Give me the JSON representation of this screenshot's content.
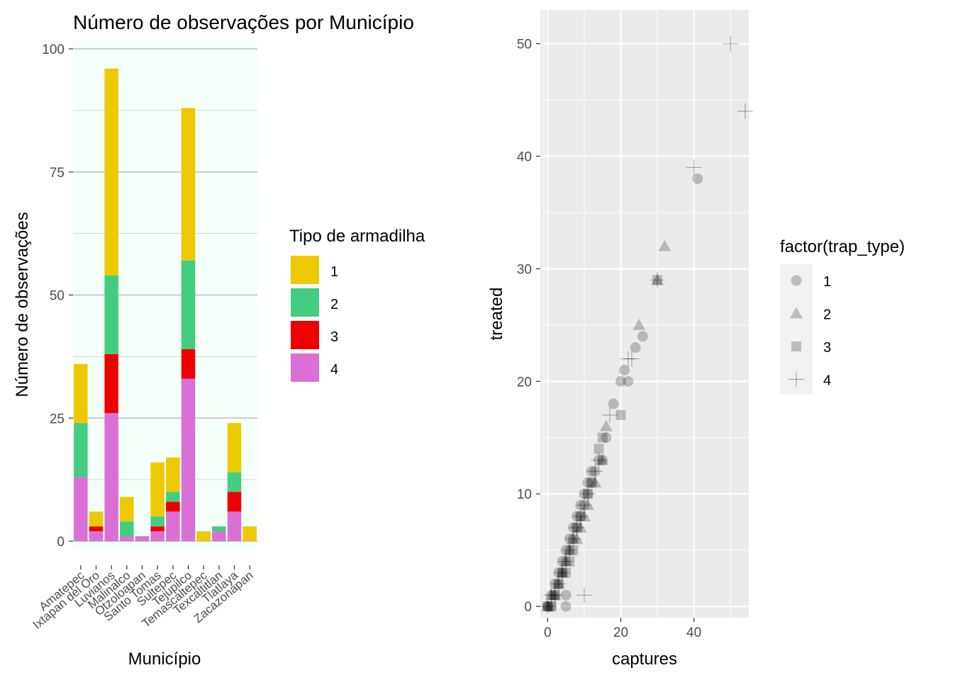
{
  "chart_data": [
    {
      "type": "bar",
      "title": "Número de observações por Município",
      "xlabel": "Município",
      "ylabel": "Número de observações",
      "ylim": [
        0,
        100
      ],
      "yticks": [
        0,
        25,
        50,
        75,
        100
      ],
      "grid": true,
      "stacked": true,
      "legend": {
        "title": "Tipo de armadilha",
        "position": "right"
      },
      "categories": [
        "Amatepec",
        "Ixtapan del Oro",
        "Luvianos",
        "Malinalco",
        "Otzoloapan",
        "Santo Tomas",
        "Sultepec",
        "Tejupilco",
        "Temascaltepec",
        "Texcaltitlan",
        "Tlatlaya",
        "Zacazonapan"
      ],
      "series": [
        {
          "name": "1",
          "color": "#EEC900",
          "values": [
            12,
            3,
            42,
            5,
            0,
            11,
            7,
            31,
            2,
            0,
            10,
            3
          ]
        },
        {
          "name": "2",
          "color": "#43CD80",
          "values": [
            11,
            0,
            16,
            3,
            0,
            2,
            2,
            18,
            0,
            1,
            4,
            0
          ]
        },
        {
          "name": "3",
          "color": "#EE0000",
          "values": [
            0,
            1,
            12,
            0,
            0,
            1,
            2,
            6,
            0,
            0,
            4,
            0
          ]
        },
        {
          "name": "4",
          "color": "#DA70D6",
          "values": [
            13,
            2,
            26,
            1,
            1,
            2,
            6,
            33,
            0,
            2,
            6,
            0
          ]
        }
      ]
    },
    {
      "type": "scatter",
      "xlabel": "captures",
      "ylabel": "treated",
      "xlim": [
        -2,
        55
      ],
      "ylim": [
        -1,
        53
      ],
      "xticks": [
        0,
        20,
        40
      ],
      "yticks": [
        0,
        10,
        20,
        30,
        40,
        50
      ],
      "grid": true,
      "legend": {
        "title": "factor(trap_type)",
        "position": "right"
      },
      "series": [
        {
          "name": "1",
          "shape": "circle",
          "points": [
            [
              0,
              0
            ],
            [
              0,
              0
            ],
            [
              1,
              0
            ],
            [
              1,
              1
            ],
            [
              2,
              1
            ],
            [
              2,
              2
            ],
            [
              3,
              2
            ],
            [
              3,
              3
            ],
            [
              4,
              3
            ],
            [
              4,
              4
            ],
            [
              5,
              4
            ],
            [
              5,
              5
            ],
            [
              6,
              5
            ],
            [
              6,
              6
            ],
            [
              7,
              6
            ],
            [
              7,
              7
            ],
            [
              8,
              7
            ],
            [
              8,
              8
            ],
            [
              9,
              8
            ],
            [
              9,
              9
            ],
            [
              10,
              9
            ],
            [
              10,
              10
            ],
            [
              11,
              10
            ],
            [
              11,
              11
            ],
            [
              12,
              11
            ],
            [
              12,
              12
            ],
            [
              13,
              12
            ],
            [
              14,
              13
            ],
            [
              15,
              13
            ],
            [
              16,
              15
            ],
            [
              18,
              18
            ],
            [
              20,
              20
            ],
            [
              21,
              21
            ],
            [
              22,
              20
            ],
            [
              24,
              23
            ],
            [
              26,
              24
            ],
            [
              41,
              38
            ],
            [
              5,
              0
            ],
            [
              5,
              1
            ]
          ]
        },
        {
          "name": "2",
          "shape": "triangle",
          "points": [
            [
              0,
              0
            ],
            [
              1,
              1
            ],
            [
              2,
              1
            ],
            [
              3,
              2
            ],
            [
              4,
              3
            ],
            [
              5,
              4
            ],
            [
              6,
              5
            ],
            [
              7,
              6
            ],
            [
              8,
              6
            ],
            [
              9,
              7
            ],
            [
              10,
              8
            ],
            [
              11,
              9
            ],
            [
              13,
              11
            ],
            [
              15,
              13
            ],
            [
              16,
              16
            ],
            [
              25,
              25
            ],
            [
              30,
              29
            ],
            [
              32,
              32
            ]
          ]
        },
        {
          "name": "3",
          "shape": "square",
          "points": [
            [
              0,
              0
            ],
            [
              1,
              0
            ],
            [
              2,
              1
            ],
            [
              3,
              2
            ],
            [
              4,
              3
            ],
            [
              5,
              3
            ],
            [
              6,
              4
            ],
            [
              7,
              5
            ],
            [
              8,
              7
            ],
            [
              9,
              8
            ],
            [
              11,
              10
            ],
            [
              12,
              11
            ],
            [
              14,
              14
            ],
            [
              15,
              15
            ],
            [
              20,
              17
            ],
            [
              30,
              29
            ]
          ]
        },
        {
          "name": "4",
          "shape": "cross",
          "points": [
            [
              0,
              0
            ],
            [
              1,
              1
            ],
            [
              2,
              1
            ],
            [
              3,
              2
            ],
            [
              4,
              3
            ],
            [
              5,
              4
            ],
            [
              6,
              5
            ],
            [
              7,
              6
            ],
            [
              8,
              7
            ],
            [
              9,
              8
            ],
            [
              10,
              9
            ],
            [
              11,
              10
            ],
            [
              13,
              12
            ],
            [
              14,
              13
            ],
            [
              17,
              17
            ],
            [
              22,
              22
            ],
            [
              23,
              22
            ],
            [
              10,
              1
            ],
            [
              30,
              29
            ],
            [
              40,
              39
            ],
            [
              50,
              50
            ],
            [
              54,
              44
            ]
          ]
        }
      ]
    }
  ]
}
